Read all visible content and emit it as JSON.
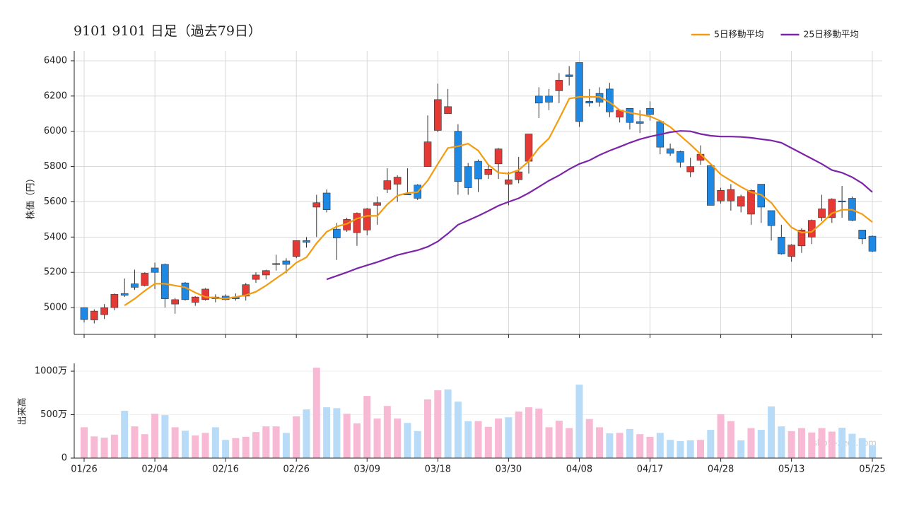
{
  "chart_data": [
    {
      "type": "candlestick",
      "title": "9101 9101  日足（過去79日）",
      "ylabel": "株価（円）",
      "open": [
        5000,
        4930,
        4960,
        5000,
        5080,
        5135,
        5125,
        5225,
        5245,
        5020,
        5140,
        5030,
        5045,
        5060,
        5065,
        5060,
        5065,
        5160,
        5185,
        5250,
        5265,
        5290,
        5380,
        5570,
        5650,
        5445,
        5440,
        5425,
        5440,
        5580,
        5670,
        5700,
        5645,
        5695,
        5800,
        6005,
        6100,
        6000,
        5800,
        5830,
        5755,
        5815,
        5700,
        5725,
        5830,
        6200,
        6200,
        6230,
        6320,
        6390,
        6170,
        6215,
        6240,
        6080,
        6130,
        6055,
        6130,
        6055,
        5900,
        5885,
        5770,
        5835,
        5805,
        5605,
        5605,
        5575,
        5530,
        5700,
        5550,
        5400,
        5290,
        5350,
        5400,
        5510,
        5510,
        5605,
        5620,
        5440,
        5405
      ],
      "high": [
        5000,
        4990,
        5020,
        5080,
        5165,
        5215,
        5200,
        5255,
        5250,
        5055,
        5145,
        5065,
        5110,
        5075,
        5075,
        5080,
        5140,
        5200,
        5215,
        5300,
        5280,
        5380,
        5400,
        5640,
        5670,
        5480,
        5510,
        5540,
        5565,
        5630,
        5790,
        5750,
        5790,
        5700,
        6090,
        6270,
        6240,
        6040,
        5820,
        5840,
        5810,
        5905,
        5770,
        5855,
        5985,
        6250,
        6240,
        6330,
        6370,
        6390,
        6240,
        6250,
        6275,
        6125,
        6130,
        6120,
        6170,
        6060,
        5930,
        5890,
        5850,
        5920,
        5805,
        5680,
        5700,
        5640,
        5670,
        5700,
        5550,
        5470,
        5360,
        5450,
        5500,
        5640,
        5620,
        5690,
        5630,
        5440,
        5410
      ],
      "low": [
        4915,
        4910,
        4935,
        4985,
        5060,
        5100,
        5120,
        5105,
        5000,
        4965,
        5040,
        5010,
        5040,
        5030,
        5040,
        5040,
        5040,
        5140,
        5160,
        5210,
        5195,
        5280,
        5340,
        5400,
        5540,
        5270,
        5430,
        5350,
        5410,
        5470,
        5650,
        5600,
        5640,
        5610,
        5800,
        5995,
        6100,
        5640,
        5640,
        5655,
        5730,
        5730,
        5580,
        5705,
        5760,
        6075,
        6120,
        6160,
        6260,
        6025,
        6140,
        6140,
        6080,
        6050,
        6010,
        5990,
        6060,
        5870,
        5860,
        5795,
        5740,
        5810,
        5580,
        5590,
        5550,
        5540,
        5470,
        5480,
        5380,
        5300,
        5260,
        5310,
        5360,
        5490,
        5480,
        5510,
        5490,
        5360,
        5315
      ],
      "close": [
        4932,
        4980,
        5000,
        5075,
        5070,
        5115,
        5195,
        5200,
        5050,
        5045,
        5045,
        5060,
        5105,
        5050,
        5045,
        5050,
        5130,
        5185,
        5210,
        5245,
        5245,
        5380,
        5370,
        5595,
        5555,
        5395,
        5500,
        5535,
        5560,
        5595,
        5720,
        5740,
        5640,
        5620,
        5940,
        6180,
        6140,
        5715,
        5680,
        5730,
        5785,
        5900,
        5725,
        5770,
        5985,
        6160,
        6165,
        6290,
        6310,
        6055,
        6160,
        6165,
        6110,
        6120,
        6050,
        6045,
        6095,
        5910,
        5875,
        5825,
        5800,
        5870,
        5580,
        5665,
        5670,
        5630,
        5665,
        5570,
        5465,
        5305,
        5355,
        5440,
        5495,
        5560,
        5615,
        5600,
        5495,
        5390,
        5320
      ],
      "up_color": "#e53935",
      "down_color": "#1e88e5",
      "series": [
        {
          "name": "5日移動平均",
          "color": "#f39c12",
          "values": [
            null,
            null,
            null,
            null,
            5012,
            5050,
            5095,
            5135,
            5135,
            5125,
            5115,
            5085,
            5060,
            5055,
            5050,
            5060,
            5070,
            5090,
            5125,
            5165,
            5205,
            5255,
            5285,
            5365,
            5430,
            5460,
            5475,
            5505,
            5520,
            5520,
            5585,
            5635,
            5650,
            5655,
            5720,
            5815,
            5905,
            5915,
            5930,
            5890,
            5810,
            5765,
            5760,
            5780,
            5830,
            5905,
            5960,
            6070,
            6185,
            6195,
            6195,
            6195,
            6165,
            6120,
            6105,
            6095,
            6085,
            6060,
            6025,
            5975,
            5925,
            5870,
            5815,
            5755,
            5720,
            5685,
            5655,
            5640,
            5595,
            5520,
            5455,
            5425,
            5430,
            5480,
            5535,
            5555,
            5555,
            5530,
            5485
          ]
        },
        {
          "name": "25日移動平均",
          "color": "#7b24a8",
          "values": [
            null,
            null,
            null,
            null,
            null,
            null,
            null,
            null,
            null,
            null,
            null,
            null,
            null,
            null,
            null,
            null,
            null,
            null,
            null,
            null,
            null,
            null,
            null,
            null,
            5160,
            5180,
            5200,
            5222,
            5240,
            5258,
            5278,
            5298,
            5312,
            5325,
            5345,
            5375,
            5420,
            5470,
            5495,
            5520,
            5548,
            5578,
            5600,
            5620,
            5650,
            5685,
            5720,
            5750,
            5785,
            5815,
            5835,
            5865,
            5890,
            5912,
            5935,
            5955,
            5970,
            5982,
            5995,
            6002,
            6000,
            5985,
            5975,
            5970,
            5970,
            5968,
            5963,
            5955,
            5948,
            5935,
            5905,
            5875,
            5845,
            5815,
            5780,
            5765,
            5740,
            5705,
            5655
          ]
        }
      ],
      "ylim": [
        4848,
        6456
      ],
      "yticks": [
        5000,
        5200,
        5400,
        5600,
        5800,
        6000,
        6200,
        6400
      ],
      "grid": true,
      "legend": "upper right"
    },
    {
      "type": "bar",
      "ylabel": "出来高",
      "watermark": "show-zeet.com",
      "categories": [
        "01/26",
        null,
        null,
        null,
        null,
        null,
        null,
        "02/04",
        null,
        null,
        null,
        null,
        null,
        null,
        "02/16",
        null,
        null,
        null,
        null,
        null,
        null,
        "02/26",
        null,
        null,
        null,
        null,
        null,
        null,
        "03/09",
        null,
        null,
        null,
        null,
        null,
        null,
        "03/18",
        null,
        null,
        null,
        null,
        null,
        null,
        "03/30",
        null,
        null,
        null,
        null,
        null,
        null,
        "04/08",
        null,
        null,
        null,
        null,
        null,
        null,
        "04/17",
        null,
        null,
        null,
        null,
        null,
        null,
        "04/28",
        null,
        null,
        null,
        null,
        null,
        null,
        "05/13",
        null,
        null,
        null,
        null,
        null,
        null,
        null,
        "05/25"
      ],
      "values": [
        355,
        250,
        235,
        270,
        545,
        365,
        275,
        510,
        495,
        355,
        315,
        260,
        290,
        355,
        210,
        230,
        245,
        300,
        365,
        365,
        290,
        480,
        560,
        1040,
        585,
        575,
        510,
        400,
        715,
        455,
        600,
        455,
        405,
        310,
        675,
        780,
        790,
        650,
        425,
        425,
        360,
        455,
        470,
        535,
        585,
        570,
        355,
        430,
        345,
        845,
        450,
        355,
        285,
        290,
        335,
        275,
        245,
        290,
        210,
        195,
        205,
        210,
        325,
        505,
        425,
        205,
        345,
        325,
        595,
        365,
        310,
        345,
        295,
        345,
        305,
        350,
        280,
        230,
        150
      ],
      "colors": [
        "#f7b9d3",
        "#f7b9d3",
        "#f7b9d3",
        "#f7b9d3",
        "#b8dcf8",
        "#f7b9d3",
        "#f7b9d3",
        "#f7b9d3",
        "#b8dcf8",
        "#f7b9d3",
        "#b8dcf8",
        "#f7b9d3",
        "#f7b9d3",
        "#b8dcf8",
        "#b8dcf8",
        "#f7b9d3",
        "#f7b9d3",
        "#f7b9d3",
        "#f7b9d3",
        "#f7b9d3",
        "#b8dcf8",
        "#f7b9d3",
        "#b8dcf8",
        "#f7b9d3",
        "#b8dcf8",
        "#b8dcf8",
        "#f7b9d3",
        "#f7b9d3",
        "#f7b9d3",
        "#f7b9d3",
        "#f7b9d3",
        "#f7b9d3",
        "#b8dcf8",
        "#b8dcf8",
        "#f7b9d3",
        "#f7b9d3",
        "#b8dcf8",
        "#b8dcf8",
        "#b8dcf8",
        "#f7b9d3",
        "#f7b9d3",
        "#f7b9d3",
        "#b8dcf8",
        "#f7b9d3",
        "#f7b9d3",
        "#f7b9d3",
        "#f7b9d3",
        "#f7b9d3",
        "#f7b9d3",
        "#b8dcf8",
        "#f7b9d3",
        "#f7b9d3",
        "#b8dcf8",
        "#f7b9d3",
        "#b8dcf8",
        "#f7b9d3",
        "#f7b9d3",
        "#b8dcf8",
        "#b8dcf8",
        "#b8dcf8",
        "#b8dcf8",
        "#f7b9d3",
        "#b8dcf8",
        "#f7b9d3",
        "#f7b9d3",
        "#b8dcf8",
        "#f7b9d3",
        "#b8dcf8",
        "#b8dcf8",
        "#b8dcf8",
        "#f7b9d3",
        "#f7b9d3",
        "#f7b9d3",
        "#f7b9d3",
        "#f7b9d3",
        "#b8dcf8",
        "#b8dcf8",
        "#b8dcf8",
        "#b8dcf8"
      ],
      "ylim": [
        0,
        1090
      ],
      "yticks": [
        0,
        {
          "value": 500,
          "label": "500万"
        },
        {
          "value": 1000,
          "label": "1000万"
        }
      ],
      "grid": true
    }
  ]
}
